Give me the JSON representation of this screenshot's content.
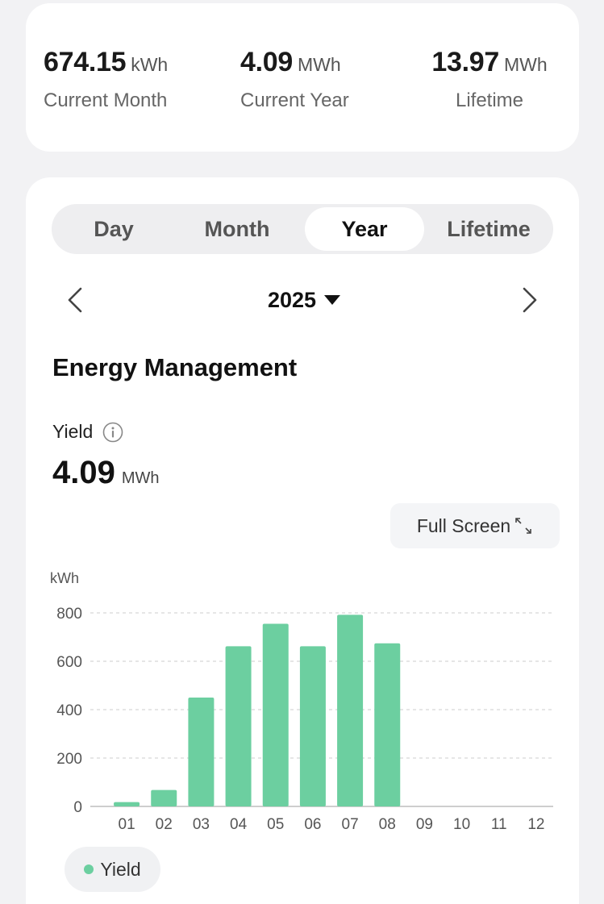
{
  "summary": {
    "current_month": {
      "value": "674.15",
      "unit": "kWh",
      "label": "Current Month"
    },
    "current_year": {
      "value": "4.09",
      "unit": "MWh",
      "label": "Current Year"
    },
    "lifetime": {
      "value": "13.97",
      "unit": "MWh",
      "label": "Lifetime"
    }
  },
  "tabs": [
    {
      "label": "Day",
      "active": false
    },
    {
      "label": "Month",
      "active": false
    },
    {
      "label": "Year",
      "active": true
    },
    {
      "label": "Lifetime",
      "active": false
    }
  ],
  "year_nav": {
    "year": "2025",
    "prev_icon": "chevron-left-icon",
    "next_icon": "chevron-right-icon",
    "dropdown_icon": "caret-down-icon"
  },
  "section": {
    "title": "Energy Management"
  },
  "yield": {
    "label": "Yield",
    "value": "4.09",
    "unit": "MWh",
    "info_icon": "info-icon"
  },
  "fullscreen": {
    "label": "Full Screen",
    "icon": "expand-icon"
  },
  "colors": {
    "accent": "#6ccfa0",
    "grid": "#d6d6d6",
    "axis": "#bdbdbd"
  },
  "chart_data": {
    "type": "bar",
    "ylabel": "kWh",
    "ylim": [
      0,
      800
    ],
    "yticks": [
      0,
      200,
      400,
      600,
      800
    ],
    "grid": true,
    "legend_placement": "bottom-left",
    "categories": [
      "01",
      "02",
      "03",
      "04",
      "05",
      "06",
      "07",
      "08",
      "09",
      "10",
      "11",
      "12"
    ],
    "series": [
      {
        "name": "Yield",
        "color": "#6ccfa0",
        "values": [
          18,
          68,
          450,
          662,
          755,
          662,
          792,
          674,
          null,
          null,
          null,
          null
        ]
      }
    ]
  }
}
